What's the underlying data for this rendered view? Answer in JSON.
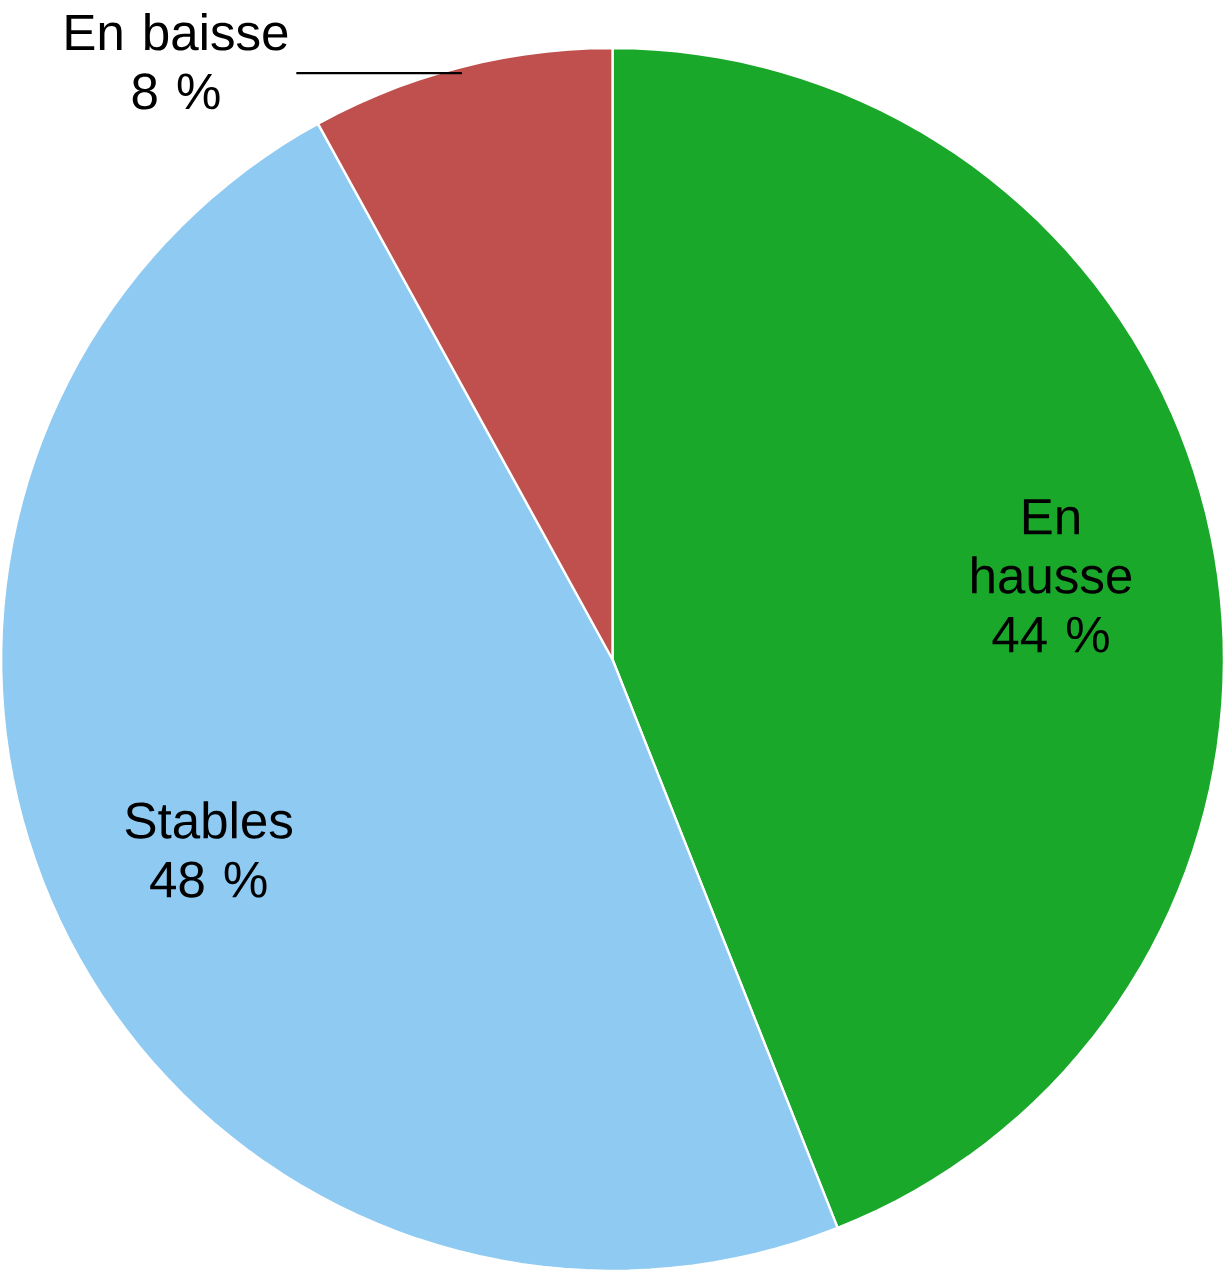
{
  "chart_data": {
    "type": "pie",
    "categories": [
      "En hausse",
      "Stables",
      "En baisse"
    ],
    "values": [
      44,
      48,
      8
    ],
    "value_labels": [
      "44 %",
      "48 %",
      "8 %"
    ],
    "colors": [
      "#1aa82a",
      "#8ecaf2",
      "#c0504d"
    ]
  }
}
